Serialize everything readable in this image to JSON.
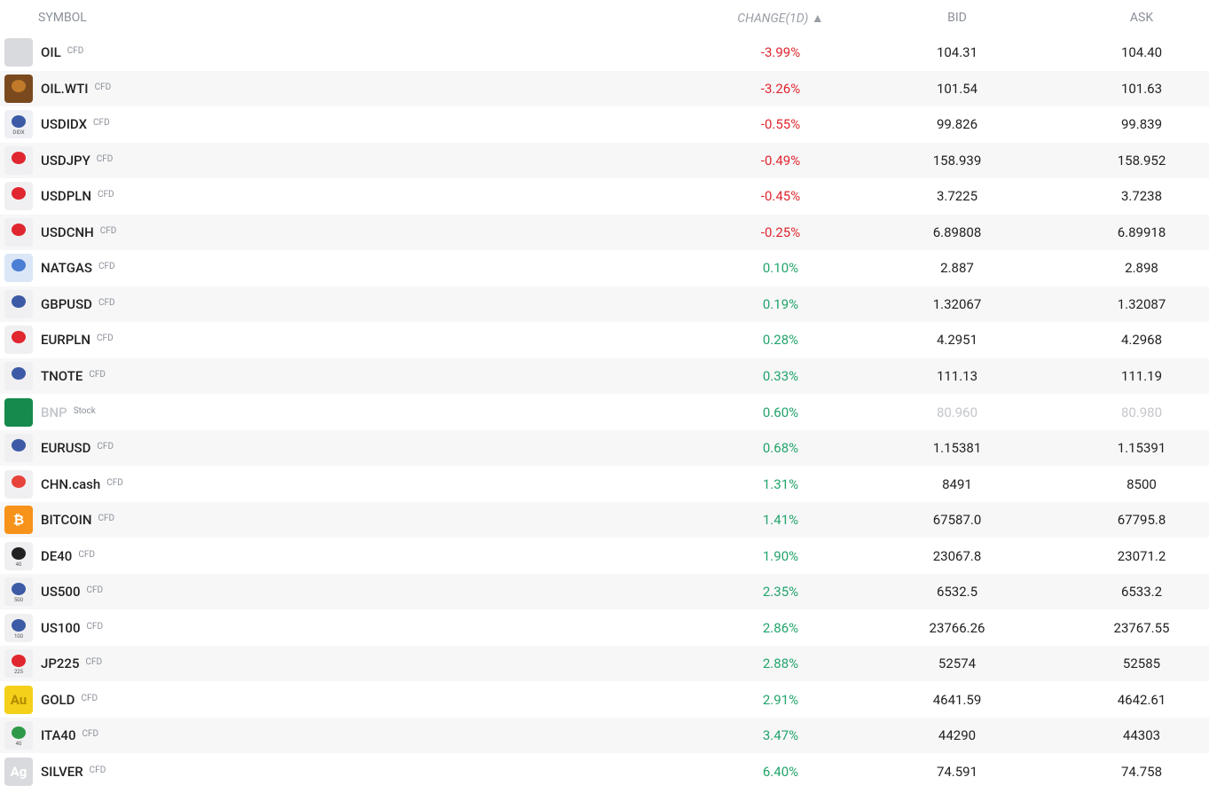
{
  "header": {
    "symbol": "SYMBOL",
    "change": "CHANGE(1D) ▲",
    "bid": "BID",
    "ask": "ASK"
  },
  "table": {
    "rows": [
      {
        "symbol": "OIL",
        "kind": "CFD",
        "change": "-3.99%",
        "bid": "104.31",
        "ask": "104.40"
      },
      {
        "symbol": "OIL.WTI",
        "kind": "CFD",
        "change": "-3.26%",
        "bid": "101.54",
        "ask": "101.63"
      },
      {
        "symbol": "USDIDX",
        "kind": "CFD",
        "change": "-0.55%",
        "bid": "99.826",
        "ask": "99.839",
        "icon_text": "DIDX"
      },
      {
        "symbol": "USDJPY",
        "kind": "CFD",
        "change": "-0.49%",
        "bid": "158.939",
        "ask": "158.952"
      },
      {
        "symbol": "USDPLN",
        "kind": "CFD",
        "change": "-0.45%",
        "bid": "3.7225",
        "ask": "3.7238"
      },
      {
        "symbol": "USDCNH",
        "kind": "CFD",
        "change": "-0.25%",
        "bid": "6.89808",
        "ask": "6.89918"
      },
      {
        "symbol": "NATGAS",
        "kind": "CFD",
        "change": "0.10%",
        "bid": "2.887",
        "ask": "2.898"
      },
      {
        "symbol": "GBPUSD",
        "kind": "CFD",
        "change": "0.19%",
        "bid": "1.32067",
        "ask": "1.32087"
      },
      {
        "symbol": "EURPLN",
        "kind": "CFD",
        "change": "0.28%",
        "bid": "4.2951",
        "ask": "4.2968"
      },
      {
        "symbol": "TNOTE",
        "kind": "CFD",
        "change": "0.33%",
        "bid": "111.13",
        "ask": "111.19"
      },
      {
        "symbol": "BNP",
        "kind": "Stock",
        "change": "0.60%",
        "bid": "80.960",
        "ask": "80.980",
        "muted": true
      },
      {
        "symbol": "EURUSD",
        "kind": "CFD",
        "change": "0.68%",
        "bid": "1.15381",
        "ask": "1.15391"
      },
      {
        "symbol": "CHN.cash",
        "kind": "CFD",
        "change": "1.31%",
        "bid": "8491",
        "ask": "8500"
      },
      {
        "symbol": "BITCOIN",
        "kind": "CFD",
        "change": "1.41%",
        "bid": "67587.0",
        "ask": "67795.8",
        "icon_text": "₿"
      },
      {
        "symbol": "DE40",
        "kind": "CFD",
        "change": "1.90%",
        "bid": "23067.8",
        "ask": "23071.2",
        "icon_text": "40"
      },
      {
        "symbol": "US500",
        "kind": "CFD",
        "change": "2.35%",
        "bid": "6532.5",
        "ask": "6533.2",
        "icon_text": "500"
      },
      {
        "symbol": "US100",
        "kind": "CFD",
        "change": "2.86%",
        "bid": "23766.26",
        "ask": "23767.55",
        "icon_text": "100"
      },
      {
        "symbol": "JP225",
        "kind": "CFD",
        "change": "2.88%",
        "bid": "52574",
        "ask": "52585",
        "icon_text": "225"
      },
      {
        "symbol": "GOLD",
        "kind": "CFD",
        "change": "2.91%",
        "bid": "4641.59",
        "ask": "4642.61",
        "icon_text": "Au"
      },
      {
        "symbol": "ITA40",
        "kind": "CFD",
        "change": "3.47%",
        "bid": "44290",
        "ask": "44303",
        "icon_text": "40"
      },
      {
        "symbol": "SILVER",
        "kind": "CFD",
        "change": "6.40%",
        "bid": "74.591",
        "ask": "74.758",
        "icon_text": "Ag"
      }
    ]
  }
}
